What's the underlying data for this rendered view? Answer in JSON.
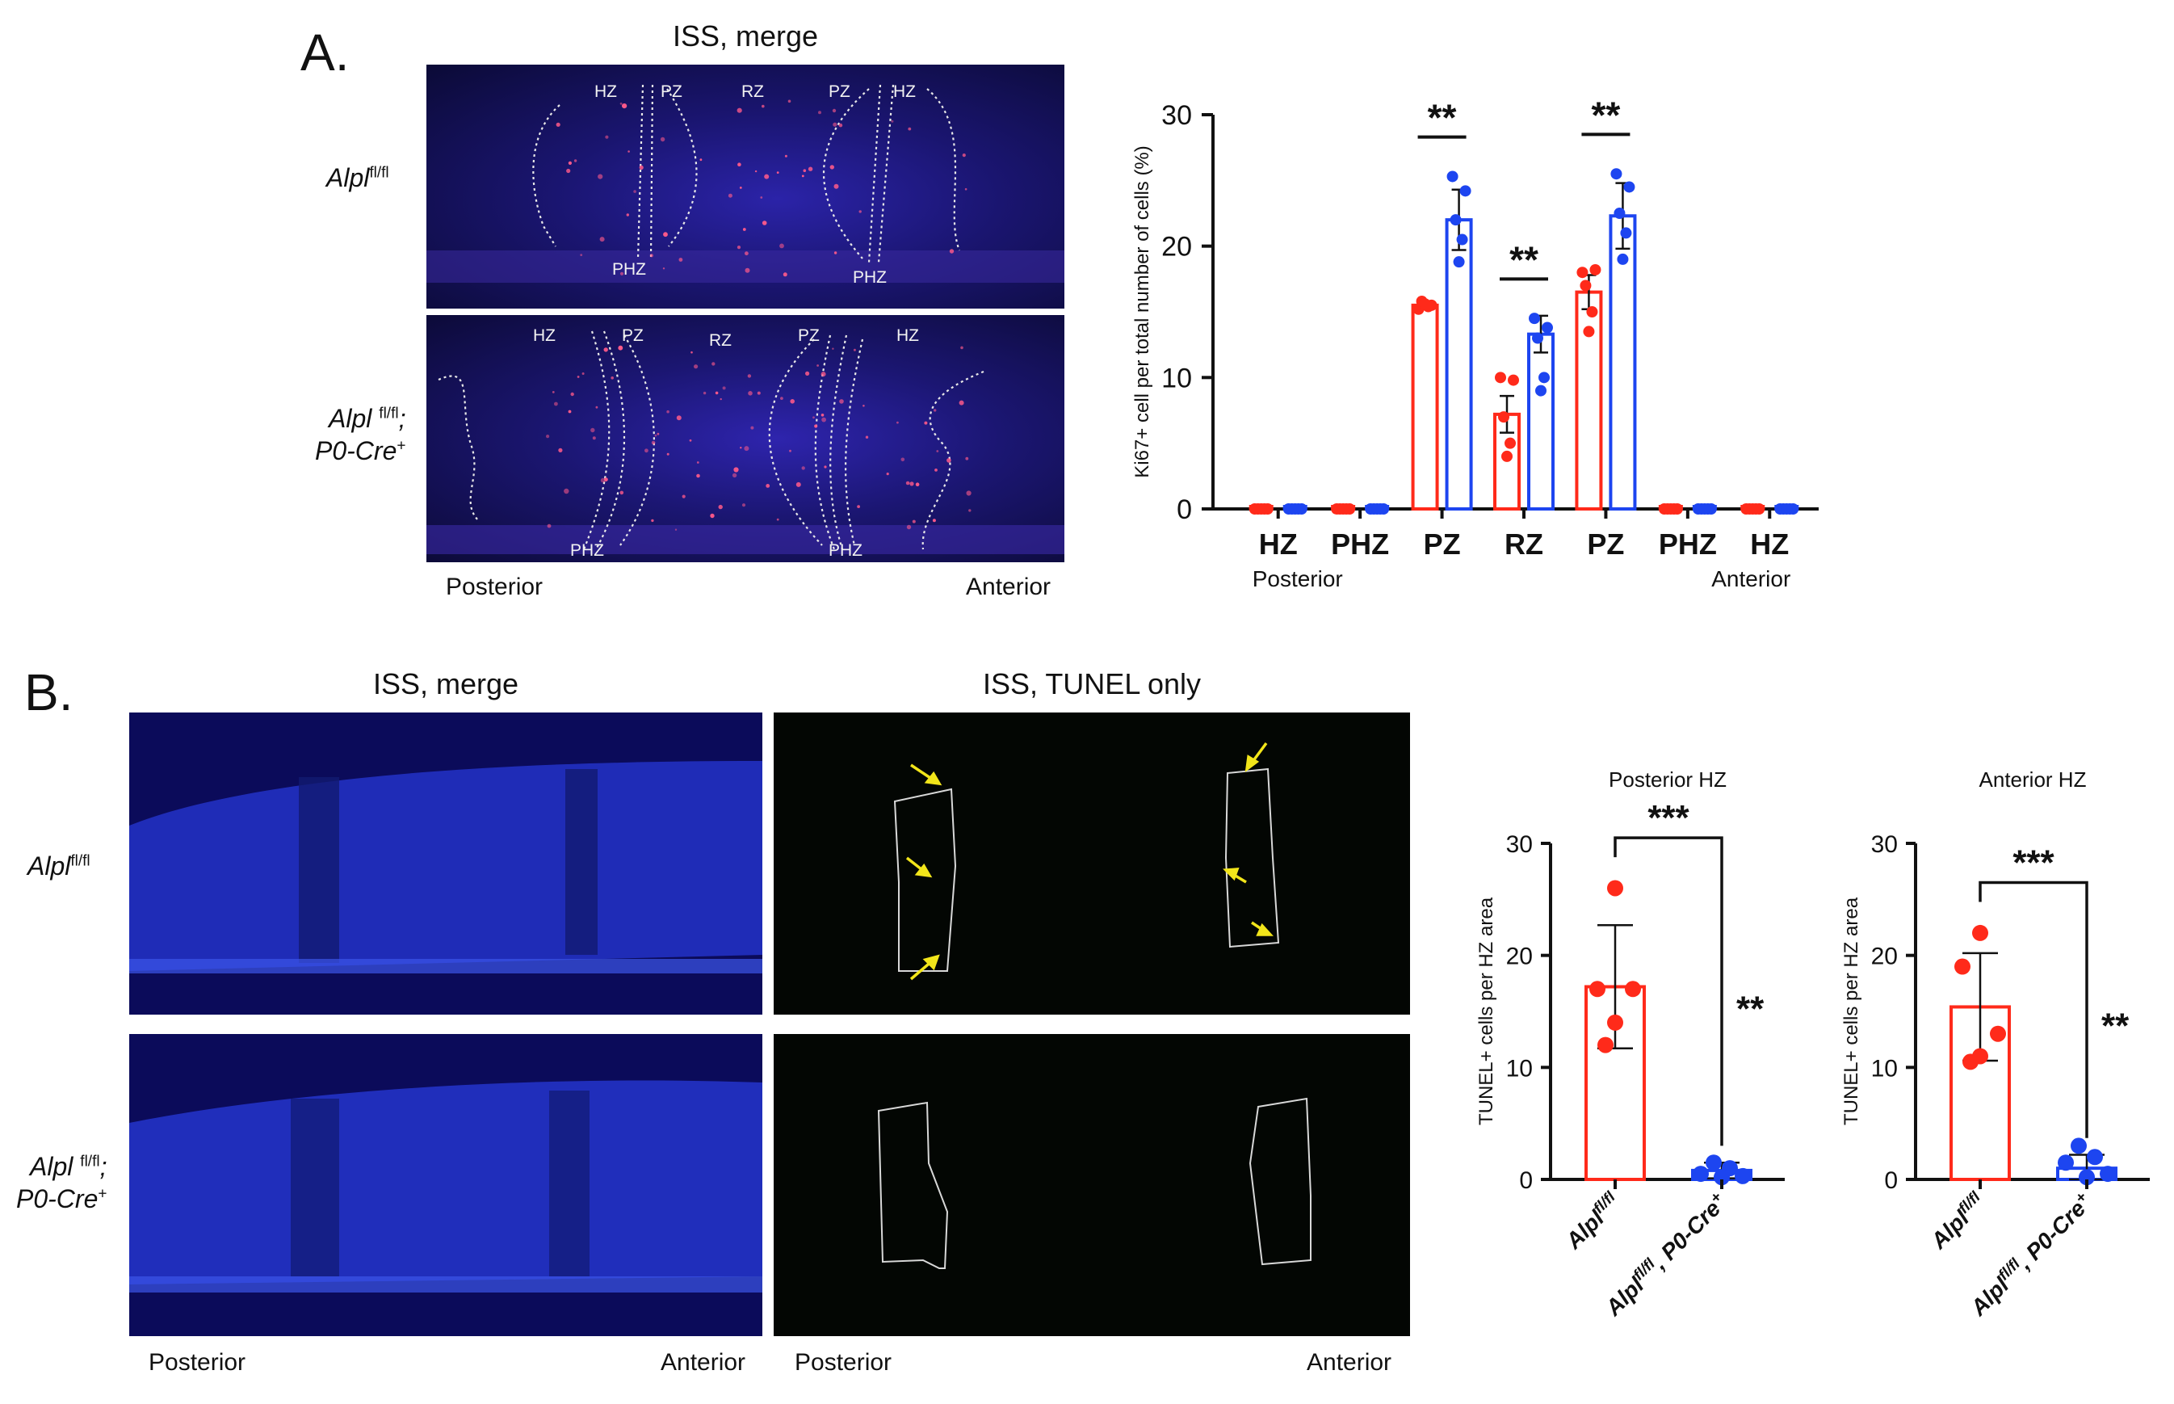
{
  "panel_a": {
    "letter": "A.",
    "image_title": "ISS, merge",
    "row1_genotype": {
      "base": "Alpl",
      "sup": "fl/fl"
    },
    "row2_genotype": {
      "base": "Alpl",
      "sup": "fl/fl",
      "sep": ";",
      "line2": "P0-Cre",
      "line2_sup": "+"
    },
    "zone_labels_top": [
      "HZ",
      "PZ",
      "RZ",
      "PZ",
      "HZ"
    ],
    "zone_labels_bottom": [
      "PHZ",
      "PHZ"
    ],
    "posterior": "Posterior",
    "anterior": "Anterior"
  },
  "panel_b": {
    "letter": "B.",
    "merge_title": "ISS, merge",
    "tunel_title": "ISS, TUNEL only",
    "row1_genotype": {
      "base": "Alpl",
      "sup": "fl/fl"
    },
    "row2_genotype": {
      "base": "Alpl",
      "sup": "fl/fl",
      "sep": ";",
      "line2": "P0-Cre",
      "line2_sup": "+"
    },
    "posterior": "Posterior",
    "anterior": "Anterior"
  },
  "colors": {
    "control": "#ff2a1a",
    "mutant": "#1d45f0"
  },
  "chart_data": [
    {
      "type": "bar",
      "ylabel": "Ki67+ cell per total number of cells (%)",
      "categories": [
        "HZ",
        "PHZ",
        "PZ",
        "RZ",
        "PZ",
        "PHZ",
        "HZ"
      ],
      "sublabels": {
        "left": "Posterior",
        "right": "Anterior"
      },
      "ylim": [
        0,
        30
      ],
      "yticks": [
        0,
        10,
        20,
        30
      ],
      "series": [
        {
          "color": "#ff2a1a",
          "values": [
            0,
            0,
            15.5,
            7.2,
            16.5,
            0,
            0
          ],
          "errors": [
            0,
            0,
            0.3,
            1.4,
            1.3,
            0,
            0
          ],
          "points": [
            [
              0,
              0,
              0,
              0,
              0
            ],
            [
              0,
              0,
              0,
              0,
              0
            ],
            [
              15.2,
              15.5,
              15.8,
              15.4,
              15.6
            ],
            [
              10,
              9.8,
              7,
              5,
              4
            ],
            [
              18,
              18.2,
              17,
              15,
              13.5
            ],
            [
              0,
              0,
              0,
              0,
              0
            ],
            [
              0,
              0,
              0,
              0,
              0
            ]
          ]
        },
        {
          "color": "#1d45f0",
          "values": [
            0,
            0,
            22,
            13.3,
            22.3,
            0,
            0
          ],
          "errors": [
            0,
            0,
            2.3,
            1.4,
            2.5,
            0,
            0
          ],
          "points": [
            [
              0,
              0,
              0,
              0,
              0
            ],
            [
              0,
              0,
              0,
              0,
              0
            ],
            [
              25.3,
              24.2,
              22,
              20.5,
              18.8
            ],
            [
              14.5,
              13.8,
              13,
              10,
              9
            ],
            [
              25.5,
              24.5,
              22.5,
              21,
              19
            ],
            [
              0,
              0,
              0,
              0,
              0
            ],
            [
              0,
              0,
              0,
              0,
              0
            ]
          ]
        }
      ],
      "significance": [
        {
          "category_index": 2,
          "label": "**"
        },
        {
          "category_index": 3,
          "label": "**"
        },
        {
          "category_index": 4,
          "label": "**"
        }
      ]
    },
    {
      "type": "bar",
      "title": "Posterior HZ",
      "ylabel": "TUNEL+ cells per HZ area",
      "categories": [
        {
          "base": "Alpl",
          "sup": "fl/fl",
          "tail": ""
        },
        {
          "base": "Alpl",
          "sup": "fl/fl",
          "tail": ", P0-Cre",
          "tail_sup": "+"
        }
      ],
      "ylim": [
        0,
        30
      ],
      "yticks": [
        0,
        10,
        20,
        30
      ],
      "values": [
        17.2,
        0.8
      ],
      "errors": [
        5.5,
        0.7
      ],
      "points": [
        [
          26,
          17,
          17,
          14,
          12
        ],
        [
          1.5,
          1,
          0.5,
          0.3,
          0.2
        ]
      ],
      "bracket_label": "***",
      "side_label": "**"
    },
    {
      "type": "bar",
      "title": "Anterior HZ",
      "ylabel": "TUNEL+ cells per HZ area",
      "categories": [
        {
          "base": "Alpl",
          "sup": "fl/fl",
          "tail": ""
        },
        {
          "base": "Alpl",
          "sup": "fl/fl",
          "tail": ", P0-Cre",
          "tail_sup": "+"
        }
      ],
      "ylim": [
        0,
        30
      ],
      "yticks": [
        0,
        10,
        20,
        30
      ],
      "values": [
        15.4,
        1.0
      ],
      "errors": [
        4.8,
        1.2
      ],
      "points": [
        [
          22,
          19,
          13,
          11,
          10.5
        ],
        [
          3,
          2,
          1.5,
          0.5,
          0.2
        ]
      ],
      "bracket_label": "***",
      "side_label": "**"
    }
  ]
}
